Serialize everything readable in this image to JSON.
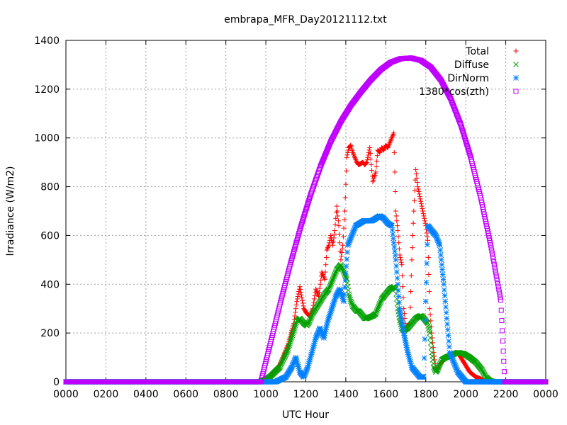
{
  "chart_data": {
    "type": "scatter",
    "title": "embrapa_MFR_Day20121112.txt",
    "xlabel": "UTC Hour",
    "ylabel": "Irradiance (W/m2)",
    "xlim": [
      0,
      24
    ],
    "ylim": [
      0,
      1400
    ],
    "x_tick_values": [
      0,
      2,
      4,
      6,
      8,
      10,
      12,
      14,
      16,
      18,
      20,
      22,
      24
    ],
    "x_tick_labels": [
      "0000",
      "0200",
      "0400",
      "0600",
      "0800",
      "1000",
      "1200",
      "1400",
      "1600",
      "1800",
      "2000",
      "2200",
      "0000"
    ],
    "y_ticks": [
      0,
      200,
      400,
      600,
      800,
      1000,
      1200,
      1400
    ],
    "grid": true,
    "legend_position": "top-right",
    "series": [
      {
        "name": "Total",
        "marker": "plus",
        "color": "#ff0000",
        "x": [
          0,
          9.7,
          10.2,
          10.7,
          11.1,
          11.4,
          11.55,
          11.7,
          11.9,
          12.05,
          12.2,
          12.35,
          12.5,
          12.65,
          12.8,
          12.95,
          13.05,
          13.15,
          13.25,
          13.35,
          13.45,
          13.55,
          13.65,
          13.75,
          13.85,
          13.95,
          14.05,
          14.15,
          14.25,
          14.35,
          14.45,
          14.55,
          14.65,
          14.75,
          14.85,
          14.95,
          15.05,
          15.2,
          15.35,
          15.5,
          15.6,
          15.7,
          15.8,
          15.9,
          16.0,
          16.1,
          16.2,
          16.3,
          16.4,
          16.5,
          16.6,
          16.7,
          16.8,
          16.9,
          17.0,
          17.1,
          17.2,
          17.3,
          17.4,
          17.5,
          17.6,
          17.7,
          17.8,
          17.9,
          18.0,
          18.1,
          18.2,
          18.3,
          18.4,
          18.5,
          18.6,
          18.7,
          18.8,
          19.0,
          19.3,
          19.6,
          19.9,
          20.2,
          20.5,
          20.8,
          21.0,
          21.2,
          21.4,
          21.6,
          22.0,
          24.0
        ],
        "y": [
          0,
          0,
          20,
          70,
          150,
          240,
          330,
          390,
          300,
          280,
          270,
          300,
          380,
          350,
          450,
          420,
          540,
          560,
          600,
          560,
          620,
          720,
          640,
          500,
          560,
          700,
          920,
          960,
          970,
          940,
          920,
          900,
          890,
          895,
          900,
          890,
          900,
          960,
          820,
          860,
          950,
          940,
          960,
          950,
          970,
          960,
          980,
          1000,
          1020,
          700,
          620,
          520,
          480,
          300,
          220,
          230,
          240,
          500,
          700,
          870,
          800,
          760,
          720,
          680,
          640,
          580,
          300,
          200,
          120,
          60,
          50,
          70,
          80,
          100,
          110,
          120,
          80,
          40,
          20,
          10,
          0,
          0,
          0,
          0,
          0,
          0
        ]
      },
      {
        "name": "Diffuse",
        "marker": "cross",
        "color": "#00a000",
        "x": [
          0,
          9.7,
          10.2,
          10.7,
          11.1,
          11.4,
          11.55,
          11.7,
          11.9,
          12.05,
          12.2,
          12.35,
          12.5,
          12.65,
          12.8,
          12.95,
          13.05,
          13.15,
          13.25,
          13.35,
          13.45,
          13.55,
          13.65,
          13.75,
          13.85,
          13.95,
          14.05,
          14.15,
          14.25,
          14.35,
          14.45,
          14.55,
          14.65,
          14.75,
          14.85,
          14.95,
          15.05,
          15.2,
          15.35,
          15.5,
          15.6,
          15.7,
          15.8,
          15.9,
          16.0,
          16.1,
          16.2,
          16.3,
          16.4,
          16.5,
          16.6,
          16.7,
          16.8,
          16.9,
          17.0,
          17.1,
          17.2,
          17.3,
          17.4,
          17.5,
          17.6,
          17.7,
          17.8,
          17.9,
          18.0,
          18.1,
          18.2,
          18.3,
          18.4,
          18.5,
          18.6,
          18.7,
          18.8,
          19.0,
          19.3,
          19.6,
          19.9,
          20.2,
          20.5,
          20.8,
          21.0,
          21.2,
          21.4,
          21.6,
          22.0,
          24.0
        ],
        "y": [
          0,
          0,
          20,
          60,
          130,
          210,
          250,
          260,
          240,
          230,
          250,
          280,
          300,
          320,
          340,
          360,
          370,
          380,
          400,
          420,
          440,
          460,
          470,
          480,
          460,
          440,
          420,
          360,
          330,
          310,
          300,
          290,
          290,
          280,
          270,
          260,
          260,
          265,
          270,
          280,
          300,
          320,
          340,
          350,
          360,
          370,
          380,
          385,
          390,
          380,
          300,
          250,
          220,
          210,
          215,
          220,
          230,
          240,
          250,
          260,
          265,
          270,
          270,
          260,
          250,
          240,
          200,
          120,
          60,
          40,
          50,
          70,
          90,
          100,
          110,
          120,
          115,
          100,
          80,
          50,
          20,
          5,
          0,
          0,
          0,
          0
        ]
      },
      {
        "name": "DirNorm",
        "marker": "star",
        "color": "#0080ff",
        "x": [
          0,
          9.7,
          10.5,
          11.0,
          11.3,
          11.5,
          11.7,
          11.9,
          12.1,
          12.3,
          12.5,
          12.7,
          12.9,
          13.1,
          13.3,
          13.5,
          13.7,
          13.9,
          14.1,
          14.3,
          14.5,
          14.7,
          14.9,
          15.1,
          15.3,
          15.5,
          15.7,
          15.9,
          16.1,
          16.3,
          16.5,
          16.7,
          16.9,
          17.1,
          17.3,
          17.5,
          17.7,
          17.9,
          18.1,
          18.3,
          18.5,
          18.7,
          18.9,
          19.2,
          19.6,
          20.0,
          24.0
        ],
        "y": [
          0,
          0,
          0,
          20,
          60,
          100,
          40,
          20,
          60,
          120,
          180,
          220,
          180,
          250,
          300,
          350,
          380,
          330,
          560,
          600,
          640,
          650,
          660,
          660,
          660,
          670,
          680,
          670,
          650,
          640,
          500,
          300,
          200,
          120,
          60,
          40,
          20,
          20,
          640,
          620,
          600,
          560,
          400,
          120,
          40,
          0,
          0
        ]
      },
      {
        "name": "1380*cos(zth)",
        "marker": "box",
        "color": "#c000ff",
        "x": [
          0,
          9.75,
          10.25,
          10.75,
          11.25,
          11.75,
          12.25,
          12.75,
          13.25,
          13.75,
          14.25,
          14.75,
          15.25,
          15.75,
          16.25,
          16.75,
          17.25,
          17.75,
          18.25,
          18.75,
          19.25,
          19.75,
          20.25,
          20.75,
          21.25,
          21.75,
          21.95,
          24.0
        ],
        "y": [
          0,
          0,
          165,
          332,
          490,
          637,
          770,
          887,
          986,
          1067,
          1133,
          1188,
          1238,
          1280,
          1310,
          1325,
          1328,
          1318,
          1290,
          1238,
          1160,
          1055,
          920,
          755,
          560,
          335,
          0,
          0
        ]
      }
    ]
  }
}
